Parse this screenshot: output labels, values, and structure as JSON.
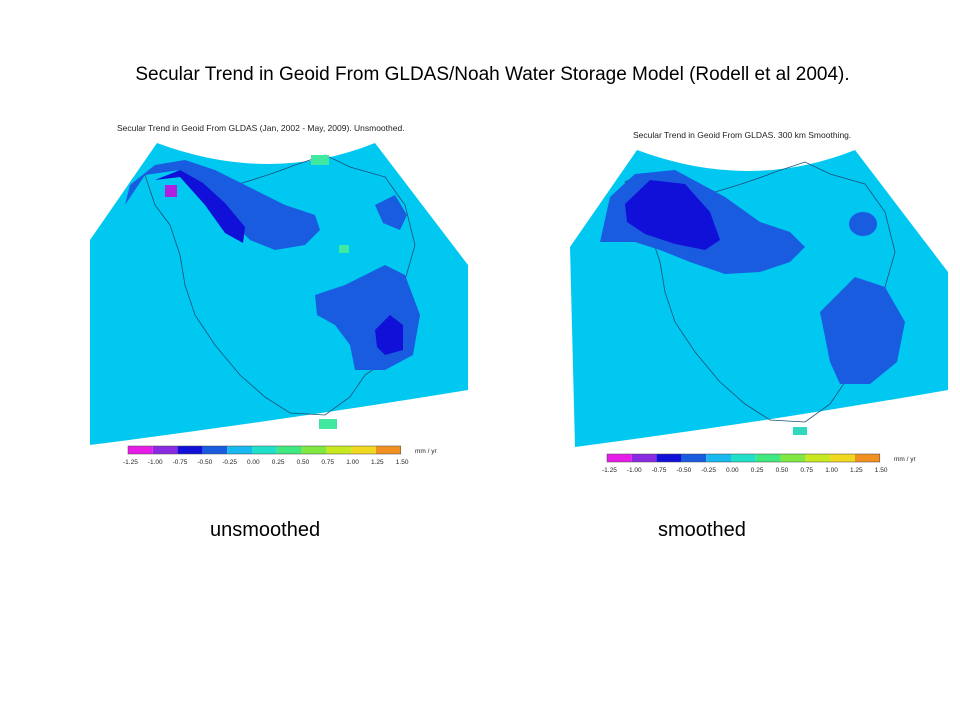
{
  "slide_title": "Secular Trend in Geoid From GLDAS/Noah Water Storage Model (Rodell et al 2004).",
  "colors": {
    "ocean": "#00c8f0",
    "land_base": "#19c0f2",
    "border": "#1b4f7a"
  },
  "colorbar": {
    "units": "mm / yr",
    "ticks": [
      "-1.25",
      "-1.00",
      "-0.75",
      "-0.50",
      "-0.25",
      "0.00",
      "0.25",
      "0.50",
      "0.75",
      "1.00",
      "1.25",
      "1.50"
    ],
    "colors": [
      "#e81ce8",
      "#8a2be2",
      "#1010d8",
      "#1a5ce0",
      "#18b8f0",
      "#20e0c8",
      "#40e880",
      "#80e840",
      "#c8e820",
      "#f0d820",
      "#f09020"
    ]
  },
  "maps": [
    {
      "id": "unsmoothed",
      "title": "Secular Trend in Geoid From GLDAS (Jan, 2002 - May, 2009). Unsmoothed.",
      "caption": "unsmoothed"
    },
    {
      "id": "smoothed",
      "title": "Secular Trend in Geoid From GLDAS. 300 km Smoothing.",
      "caption": "smoothed"
    }
  ]
}
